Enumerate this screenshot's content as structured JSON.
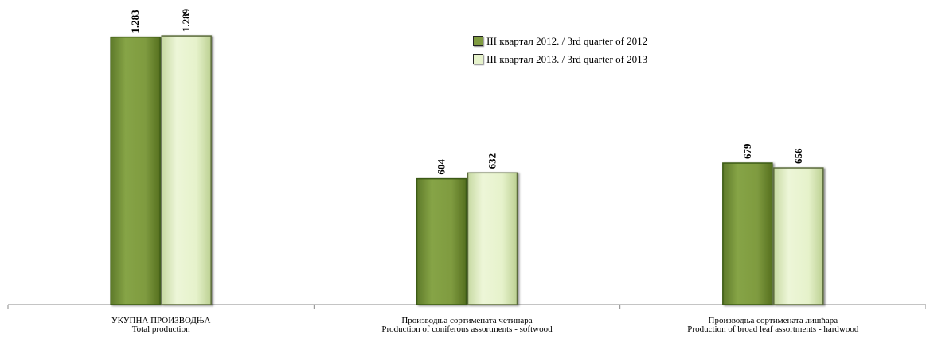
{
  "chart_data": {
    "type": "bar",
    "title": "",
    "xlabel": "",
    "ylabel": "",
    "categories": [
      [
        "УКУПНА ПРОИЗВОДЊА",
        "Total production"
      ],
      [
        "Производња сортимената четинара",
        "Production of coniferous assortments - softwood"
      ],
      [
        "Производња сортимената лишћара",
        "Production of broad leaf assortments - hardwood"
      ]
    ],
    "series": [
      {
        "name": "III квартал 2012. / 3rd quarter of 2012",
        "values": [
          1283,
          604,
          679
        ],
        "labels": [
          "1.283",
          "604",
          "679"
        ]
      },
      {
        "name": "III квартал 2013. / 3rd quarter of 2013",
        "values": [
          1289,
          632,
          656
        ],
        "labels": [
          "1.289",
          "632",
          "656"
        ]
      }
    ],
    "ylim": [
      0,
      1300
    ],
    "grid": false,
    "legend_position": "top-center",
    "colors": {
      "series_0_fill": "#7f9b40",
      "series_0_edge": "#3b5a14",
      "series_1_fill": "#e6f2cb",
      "series_1_edge": "#5a6b3a"
    }
  }
}
